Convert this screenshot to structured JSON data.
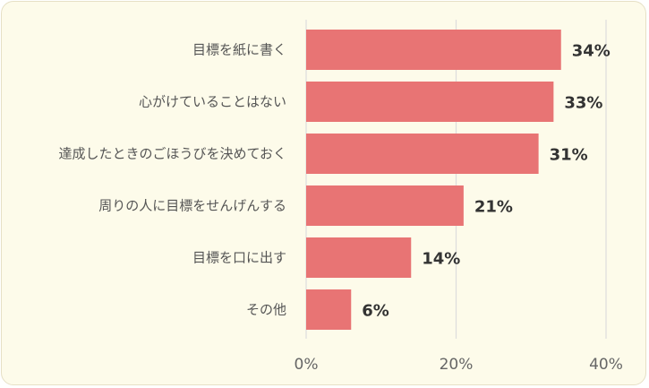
{
  "chart_data": {
    "type": "bar",
    "orientation": "horizontal",
    "categories": [
      "目標を紙に書く",
      "心がけていることはない",
      "達成したときのごほうびを決めておく",
      "周りの人に目標をせんげんする",
      "目標を口に出す",
      "その他"
    ],
    "values": [
      34,
      33,
      31,
      21,
      14,
      6
    ],
    "value_labels": [
      "34%",
      "33%",
      "31%",
      "21%",
      "14%",
      "6%"
    ],
    "x_ticks": [
      0,
      20,
      40
    ],
    "x_tick_labels": [
      "0%",
      "20%",
      "40%"
    ],
    "xlim": [
      0,
      40
    ],
    "grid": true,
    "colors": {
      "bar": "#e87474",
      "background": "#fdfbea",
      "grid": "#dddddd"
    }
  }
}
